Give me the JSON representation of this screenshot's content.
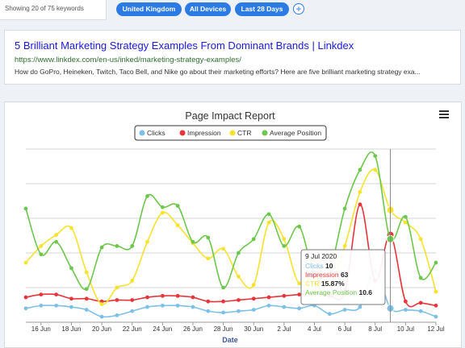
{
  "filters": {
    "showing_text": "Showing 20 of 75 keywords",
    "chips": [
      "United Kingdom",
      "All Devices",
      "Last 28 Days"
    ],
    "add_symbol": "+"
  },
  "result": {
    "title": "5 Brilliant Marketing Strategy Examples From Dominant Brands | Linkdex",
    "url": "https://www.linkdex.com/en-us/inked/marketing-strategy-examples/",
    "description": "How do GoPro, Heineken, Twitch, Taco Bell, and Nike go about their marketing efforts? Here are five brilliant marketing strategy exa..."
  },
  "colors": {
    "clicks": "#7cc0e8",
    "impression": "#e8343a",
    "ctr": "#f7e22d",
    "average_position": "#6dc74c",
    "chip": "#2c7be5"
  },
  "chart_data": {
    "type": "line",
    "title": "Page Impact Report",
    "xlabel": "Date",
    "ylabel": "",
    "categories": [
      "15 Jun",
      "16 Jun",
      "17 Jun",
      "18 Jun",
      "19 Jun",
      "20 Jun",
      "21 Jun",
      "22 Jun",
      "23 Jun",
      "24 Jun",
      "25 Jun",
      "26 Jun",
      "27 Jun",
      "28 Jun",
      "29 Jun",
      "30 Jun",
      "1 Jul",
      "2 Jul",
      "3 Jul",
      "4 Jul",
      "5 Jul",
      "6 Jul",
      "7 Jul",
      "8 Jul",
      "9 Jul",
      "10 Jul",
      "11 Jul",
      "12 Jul"
    ],
    "tick_labels": [
      "16 Jun",
      "18 Jun",
      "20 Jun",
      "22 Jun",
      "24 Jun",
      "26 Jun",
      "28 Jun",
      "30 Jun",
      "2 Jul",
      "4 Jul",
      "6 Jul",
      "8 Jul",
      "10 Jul",
      "12 Jul"
    ],
    "series": [
      {
        "name": "Clicks",
        "color": "#7cc0e8",
        "values": [
          10,
          12,
          12,
          11,
          9,
          4,
          5,
          8,
          11,
          12,
          12,
          11,
          8,
          7,
          8,
          9,
          12,
          11,
          10,
          12,
          6,
          9,
          11,
          37,
          10,
          9,
          8,
          4
        ]
      },
      {
        "name": "Impression",
        "color": "#e8343a",
        "values": [
          18,
          20,
          20,
          17,
          17,
          15,
          16,
          16,
          18,
          19,
          19,
          18,
          15,
          15,
          16,
          17,
          18,
          19,
          20,
          21,
          19,
          22,
          85,
          30,
          63,
          15,
          14,
          12
        ]
      },
      {
        "name": "CTR",
        "color": "#f7e22d",
        "values": [
          43,
          55,
          63,
          68,
          36,
          13,
          25,
          30,
          58,
          79,
          70,
          57,
          46,
          53,
          33,
          27,
          72,
          60,
          28,
          45,
          28,
          55,
          94,
          110,
          81,
          72,
          60,
          22
        ]
      },
      {
        "name": "Average Position",
        "color": "#6dc74c",
        "values": [
          82,
          49,
          58,
          39,
          24,
          54,
          55,
          55,
          91,
          83,
          84,
          58,
          61,
          25,
          50,
          60,
          78,
          55,
          69,
          35,
          38,
          82,
          110,
          120,
          60,
          76,
          32,
          43
        ]
      }
    ],
    "ylim": [
      0,
      125
    ],
    "grid": true,
    "legend": "top-center",
    "crosshair_index": 24,
    "tooltip": {
      "date": "9 Jul 2020",
      "rows": [
        {
          "label": "Clicks",
          "value": "10"
        },
        {
          "label": "Impression",
          "value": "63"
        },
        {
          "label": "CTR",
          "value": "15.87%"
        },
        {
          "label": "Average Position",
          "value": "10.6"
        }
      ]
    }
  }
}
